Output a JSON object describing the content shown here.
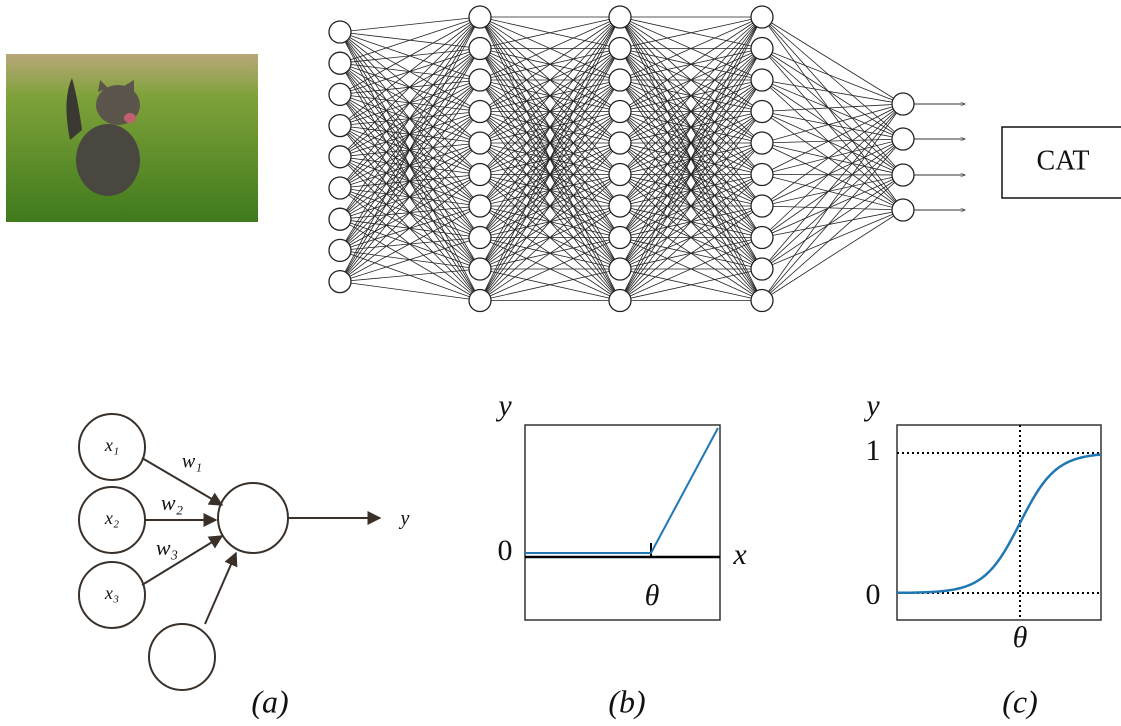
{
  "network": {
    "output_label": "CAT"
  },
  "neuron": {
    "inputs": [
      "x₁",
      "x₂",
      "x₃"
    ],
    "weights": [
      "w₁",
      "w₂",
      "w₃"
    ],
    "output": "y",
    "caption": "(a)"
  },
  "step_plot": {
    "y_label": "y",
    "x_label": "x",
    "zero_label": "0",
    "threshold_label": "θ",
    "caption": "(b)"
  },
  "sigmoid_plot": {
    "y_label": "y",
    "one_label": "1",
    "zero_label": "0",
    "threshold_label": "θ",
    "caption": "(c)"
  }
}
